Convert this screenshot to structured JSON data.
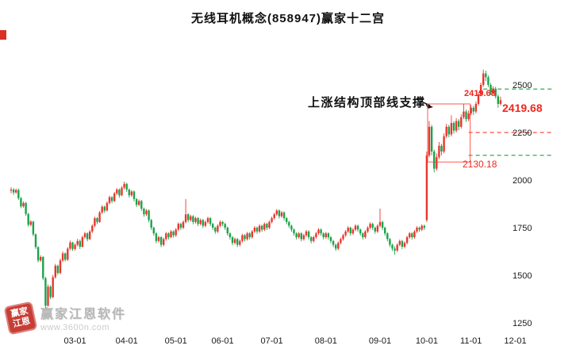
{
  "header": {
    "title": "无线耳机概念(858947)赢家十二宫"
  },
  "annotations": {
    "support_text": "上涨结构顶部线支撑",
    "price_peak_label": "2419.68",
    "current_price_label": "2419.68",
    "support_level_label": "2130.18"
  },
  "watermark": {
    "brand": "赢家江恩软件",
    "url": "www.3600n.com",
    "seal_line1": "赢家",
    "seal_line2": "江恩"
  },
  "colors": {
    "up": "#e8372d",
    "down": "#1aa34a",
    "dash_green": "#2fae4e",
    "dash_red": "#ff4a42",
    "box": "#ff5a50",
    "label_red": "#f3261c",
    "axis_text": "#1a1a1a"
  },
  "chart_data": {
    "type": "candlestick",
    "title": "无线耳机概念(858947)赢家十二宫",
    "last_close": 2419.68,
    "y_ticks": [
      2500,
      2250,
      2000,
      1750,
      1500,
      1250
    ],
    "ylim": [
      1217,
      2758
    ],
    "x_ticks": [
      {
        "label": "03-01",
        "index": 26
      },
      {
        "label": "04-01",
        "index": 47
      },
      {
        "label": "05-01",
        "index": 67
      },
      {
        "label": "06-01",
        "index": 86
      },
      {
        "label": "07-01",
        "index": 106
      },
      {
        "label": "08-01",
        "index": 128
      },
      {
        "label": "09-01",
        "index": 150
      },
      {
        "label": "10-01",
        "index": 169
      },
      {
        "label": "11-01",
        "index": 187
      },
      {
        "label": "12-01",
        "index": 205
      }
    ],
    "levels": [
      {
        "value": 2478,
        "color": "dash_green",
        "from_index": 192
      },
      {
        "value": 2250,
        "color": "dash_red",
        "from_index": 186
      },
      {
        "value": 2130.18,
        "color": "dash_green",
        "from_index": 186
      }
    ],
    "box": {
      "from_index": 170,
      "to_index": 186,
      "top_value": 2400,
      "bottom_value": 2095
    },
    "candles_format": "[open, high, low, close]",
    "candles": [
      [
        1945,
        1962,
        1930,
        1950
      ],
      [
        1950,
        1958,
        1922,
        1935
      ],
      [
        1935,
        1955,
        1928,
        1948
      ],
      [
        1948,
        1955,
        1895,
        1905
      ],
      [
        1905,
        1912,
        1852,
        1862
      ],
      [
        1862,
        1888,
        1855,
        1880
      ],
      [
        1880,
        1885,
        1812,
        1822
      ],
      [
        1822,
        1828,
        1755,
        1765
      ],
      [
        1765,
        1790,
        1758,
        1782
      ],
      [
        1782,
        1786,
        1705,
        1715
      ],
      [
        1715,
        1720,
        1638,
        1648
      ],
      [
        1648,
        1652,
        1568,
        1578
      ],
      [
        1578,
        1605,
        1570,
        1596
      ],
      [
        1596,
        1600,
        1475,
        1485
      ],
      [
        1485,
        1492,
        1320,
        1340
      ],
      [
        1340,
        1452,
        1335,
        1440
      ],
      [
        1440,
        1448,
        1375,
        1385
      ],
      [
        1385,
        1502,
        1380,
        1490
      ],
      [
        1490,
        1560,
        1482,
        1550
      ],
      [
        1550,
        1556,
        1502,
        1512
      ],
      [
        1512,
        1588,
        1505,
        1578
      ],
      [
        1578,
        1625,
        1570,
        1615
      ],
      [
        1615,
        1620,
        1572,
        1582
      ],
      [
        1582,
        1648,
        1575,
        1640
      ],
      [
        1640,
        1682,
        1632,
        1672
      ],
      [
        1672,
        1676,
        1628,
        1638
      ],
      [
        1638,
        1668,
        1630,
        1660
      ],
      [
        1660,
        1692,
        1652,
        1680
      ],
      [
        1680,
        1688,
        1638,
        1650
      ],
      [
        1650,
        1708,
        1645,
        1700
      ],
      [
        1700,
        1728,
        1692,
        1720
      ],
      [
        1720,
        1726,
        1678,
        1690
      ],
      [
        1690,
        1738,
        1685,
        1730
      ],
      [
        1730,
        1768,
        1722,
        1760
      ],
      [
        1760,
        1808,
        1752,
        1800
      ],
      [
        1800,
        1806,
        1768,
        1780
      ],
      [
        1780,
        1838,
        1775,
        1830
      ],
      [
        1830,
        1868,
        1822,
        1860
      ],
      [
        1860,
        1866,
        1828,
        1840
      ],
      [
        1840,
        1888,
        1835,
        1880
      ],
      [
        1880,
        1918,
        1872,
        1910
      ],
      [
        1910,
        1916,
        1878,
        1890
      ],
      [
        1890,
        1938,
        1885,
        1930
      ],
      [
        1930,
        1958,
        1922,
        1950
      ],
      [
        1950,
        1956,
        1908,
        1920
      ],
      [
        1920,
        1968,
        1915,
        1960
      ],
      [
        1960,
        1992,
        1952,
        1980
      ],
      [
        1980,
        1986,
        1938,
        1950
      ],
      [
        1950,
        1956,
        1908,
        1920
      ],
      [
        1920,
        1948,
        1912,
        1940
      ],
      [
        1940,
        1946,
        1888,
        1900
      ],
      [
        1900,
        1906,
        1858,
        1870
      ],
      [
        1870,
        1898,
        1862,
        1890
      ],
      [
        1890,
        1896,
        1838,
        1850
      ],
      [
        1850,
        1856,
        1808,
        1820
      ],
      [
        1820,
        1848,
        1812,
        1840
      ],
      [
        1840,
        1846,
        1778,
        1790
      ],
      [
        1790,
        1796,
        1738,
        1750
      ],
      [
        1750,
        1756,
        1708,
        1720
      ],
      [
        1720,
        1726,
        1668,
        1680
      ],
      [
        1680,
        1708,
        1672,
        1700
      ],
      [
        1700,
        1706,
        1648,
        1660
      ],
      [
        1660,
        1698,
        1652,
        1690
      ],
      [
        1690,
        1728,
        1682,
        1720
      ],
      [
        1720,
        1726,
        1688,
        1700
      ],
      [
        1700,
        1738,
        1695,
        1730
      ],
      [
        1730,
        1736,
        1698,
        1710
      ],
      [
        1710,
        1748,
        1702,
        1740
      ],
      [
        1740,
        1778,
        1732,
        1770
      ],
      [
        1770,
        1776,
        1738,
        1750
      ],
      [
        1750,
        1788,
        1742,
        1780
      ],
      [
        1780,
        1900,
        1772,
        1820
      ],
      [
        1820,
        1826,
        1778,
        1790
      ],
      [
        1790,
        1818,
        1782,
        1810
      ],
      [
        1810,
        1816,
        1768,
        1780
      ],
      [
        1780,
        1808,
        1772,
        1800
      ],
      [
        1800,
        1806,
        1758,
        1770
      ],
      [
        1770,
        1798,
        1762,
        1790
      ],
      [
        1790,
        1796,
        1748,
        1760
      ],
      [
        1760,
        1788,
        1752,
        1780
      ],
      [
        1780,
        1808,
        1772,
        1800
      ],
      [
        1800,
        1806,
        1758,
        1770
      ],
      [
        1770,
        1776,
        1738,
        1750
      ],
      [
        1750,
        1756,
        1718,
        1730
      ],
      [
        1730,
        1768,
        1722,
        1760
      ],
      [
        1760,
        1788,
        1752,
        1780
      ],
      [
        1780,
        1786,
        1758,
        1770
      ],
      [
        1770,
        1776,
        1738,
        1750
      ],
      [
        1750,
        1756,
        1708,
        1720
      ],
      [
        1720,
        1726,
        1688,
        1700
      ],
      [
        1700,
        1706,
        1658,
        1670
      ],
      [
        1670,
        1698,
        1662,
        1690
      ],
      [
        1690,
        1696,
        1648,
        1660
      ],
      [
        1660,
        1688,
        1652,
        1680
      ],
      [
        1680,
        1718,
        1672,
        1710
      ],
      [
        1710,
        1716,
        1678,
        1690
      ],
      [
        1690,
        1728,
        1682,
        1720
      ],
      [
        1720,
        1726,
        1688,
        1700
      ],
      [
        1700,
        1738,
        1692,
        1730
      ],
      [
        1730,
        1758,
        1722,
        1750
      ],
      [
        1750,
        1756,
        1718,
        1730
      ],
      [
        1730,
        1768,
        1722,
        1760
      ],
      [
        1760,
        1766,
        1728,
        1740
      ],
      [
        1740,
        1778,
        1732,
        1770
      ],
      [
        1770,
        1776,
        1738,
        1750
      ],
      [
        1750,
        1788,
        1742,
        1780
      ],
      [
        1780,
        1808,
        1772,
        1800
      ],
      [
        1800,
        1828,
        1792,
        1820
      ],
      [
        1820,
        1848,
        1812,
        1840
      ],
      [
        1840,
        1846,
        1798,
        1810
      ],
      [
        1810,
        1838,
        1802,
        1830
      ],
      [
        1830,
        1836,
        1788,
        1800
      ],
      [
        1800,
        1806,
        1768,
        1780
      ],
      [
        1780,
        1786,
        1748,
        1760
      ],
      [
        1760,
        1766,
        1728,
        1740
      ],
      [
        1740,
        1746,
        1708,
        1720
      ],
      [
        1720,
        1726,
        1688,
        1700
      ],
      [
        1700,
        1728,
        1692,
        1720
      ],
      [
        1720,
        1726,
        1678,
        1690
      ],
      [
        1690,
        1718,
        1682,
        1710
      ],
      [
        1710,
        1738,
        1702,
        1730
      ],
      [
        1730,
        1736,
        1688,
        1700
      ],
      [
        1700,
        1706,
        1668,
        1680
      ],
      [
        1680,
        1708,
        1672,
        1700
      ],
      [
        1700,
        1728,
        1692,
        1720
      ],
      [
        1720,
        1748,
        1712,
        1740
      ],
      [
        1740,
        1746,
        1708,
        1720
      ],
      [
        1720,
        1726,
        1688,
        1700
      ],
      [
        1700,
        1728,
        1692,
        1720
      ],
      [
        1720,
        1726,
        1688,
        1700
      ],
      [
        1700,
        1706,
        1668,
        1680
      ],
      [
        1680,
        1686,
        1648,
        1660
      ],
      [
        1660,
        1666,
        1628,
        1640
      ],
      [
        1640,
        1678,
        1632,
        1670
      ],
      [
        1670,
        1698,
        1662,
        1690
      ],
      [
        1690,
        1718,
        1682,
        1710
      ],
      [
        1710,
        1738,
        1702,
        1730
      ],
      [
        1730,
        1758,
        1722,
        1750
      ],
      [
        1750,
        1756,
        1708,
        1720
      ],
      [
        1720,
        1748,
        1712,
        1740
      ],
      [
        1740,
        1768,
        1732,
        1760
      ],
      [
        1760,
        1766,
        1728,
        1740
      ],
      [
        1740,
        1746,
        1708,
        1720
      ],
      [
        1720,
        1726,
        1688,
        1700
      ],
      [
        1700,
        1738,
        1692,
        1730
      ],
      [
        1730,
        1758,
        1722,
        1750
      ],
      [
        1750,
        1778,
        1742,
        1770
      ],
      [
        1770,
        1776,
        1738,
        1750
      ],
      [
        1750,
        1756,
        1718,
        1730
      ],
      [
        1730,
        1768,
        1722,
        1760
      ],
      [
        1760,
        1850,
        1752,
        1780
      ],
      [
        1780,
        1786,
        1738,
        1750
      ],
      [
        1750,
        1756,
        1708,
        1720
      ],
      [
        1720,
        1726,
        1678,
        1690
      ],
      [
        1690,
        1696,
        1648,
        1660
      ],
      [
        1660,
        1666,
        1628,
        1640
      ],
      [
        1640,
        1652,
        1608,
        1630
      ],
      [
        1630,
        1668,
        1622,
        1660
      ],
      [
        1660,
        1688,
        1652,
        1680
      ],
      [
        1680,
        1686,
        1638,
        1650
      ],
      [
        1650,
        1678,
        1642,
        1670
      ],
      [
        1670,
        1708,
        1662,
        1700
      ],
      [
        1700,
        1728,
        1692,
        1720
      ],
      [
        1720,
        1726,
        1688,
        1700
      ],
      [
        1700,
        1738,
        1692,
        1730
      ],
      [
        1730,
        1758,
        1722,
        1750
      ],
      [
        1750,
        1756,
        1728,
        1740
      ],
      [
        1740,
        1768,
        1732,
        1760
      ],
      [
        1760,
        1766,
        1738,
        1750
      ],
      [
        1790,
        2150,
        1780,
        2130
      ],
      [
        2130,
        2310,
        2120,
        2280
      ],
      [
        2280,
        2290,
        2130,
        2150
      ],
      [
        2150,
        2160,
        2040,
        2060
      ],
      [
        2060,
        2140,
        2050,
        2120
      ],
      [
        2120,
        2200,
        2110,
        2180
      ],
      [
        2180,
        2190,
        2130,
        2150
      ],
      [
        2150,
        2245,
        2140,
        2230
      ],
      [
        2230,
        2295,
        2220,
        2280
      ],
      [
        2280,
        2290,
        2225,
        2240
      ],
      [
        2240,
        2340,
        2230,
        2300
      ],
      [
        2300,
        2310,
        2245,
        2260
      ],
      [
        2260,
        2325,
        2250,
        2310
      ],
      [
        2310,
        2320,
        2262,
        2280
      ],
      [
        2280,
        2345,
        2270,
        2330
      ],
      [
        2330,
        2400,
        2320,
        2360
      ],
      [
        2360,
        2370,
        2305,
        2320
      ],
      [
        2320,
        2365,
        2310,
        2350
      ],
      [
        2350,
        2395,
        2340,
        2380
      ],
      [
        2380,
        2390,
        2342,
        2360
      ],
      [
        2360,
        2412,
        2350,
        2400
      ],
      [
        2400,
        2462,
        2392,
        2450
      ],
      [
        2450,
        2512,
        2440,
        2500
      ],
      [
        2500,
        2580,
        2490,
        2560
      ],
      [
        2560,
        2575,
        2520,
        2540
      ],
      [
        2540,
        2550,
        2488,
        2500
      ],
      [
        2500,
        2510,
        2448,
        2460
      ],
      [
        2460,
        2492,
        2450,
        2480
      ],
      [
        2480,
        2490,
        2428,
        2440
      ],
      [
        2440,
        2450,
        2380,
        2400
      ],
      [
        2400,
        2438,
        2392,
        2419.68
      ]
    ]
  }
}
